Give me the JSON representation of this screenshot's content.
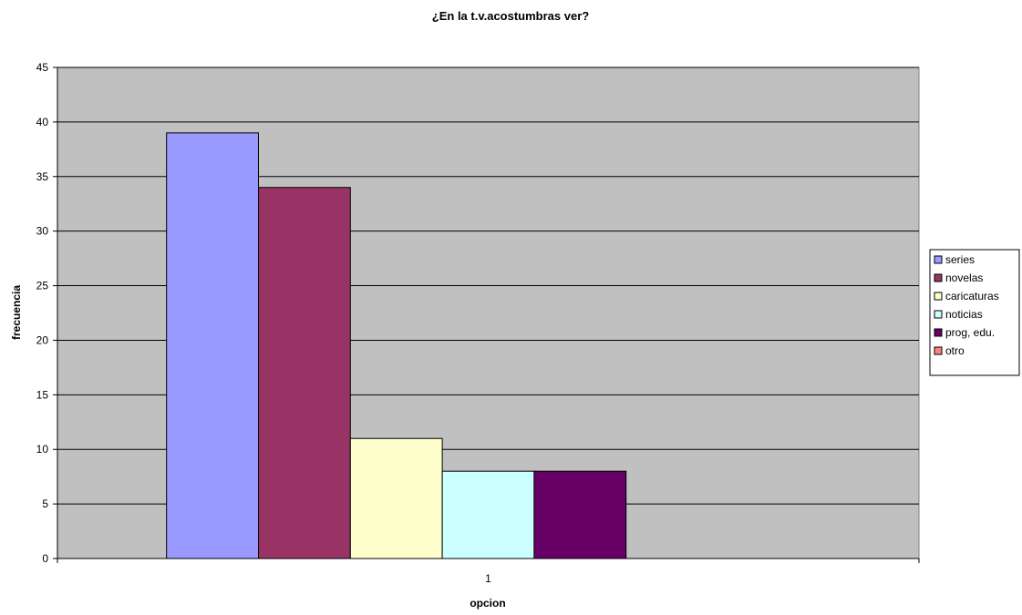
{
  "chart_data": {
    "type": "bar",
    "title": "¿En la t.v.acostumbras ver?",
    "xlabel": "opcion",
    "ylabel": "frecuencia",
    "categories": [
      "1"
    ],
    "ylim": [
      0,
      45
    ],
    "yticks": [
      0,
      5,
      10,
      15,
      20,
      25,
      30,
      35,
      40,
      45
    ],
    "grid": true,
    "legend_position": "right",
    "plot_background": "#c0c0c0",
    "series": [
      {
        "name": "series",
        "values": [
          39
        ],
        "color": "#9999ff"
      },
      {
        "name": "novelas",
        "values": [
          34
        ],
        "color": "#993366"
      },
      {
        "name": "caricaturas",
        "values": [
          11
        ],
        "color": "#ffffcc"
      },
      {
        "name": "noticias",
        "values": [
          8
        ],
        "color": "#ccffff"
      },
      {
        "name": "prog, edu.",
        "values": [
          8
        ],
        "color": "#660066"
      },
      {
        "name": "otro",
        "values": [
          0
        ],
        "color": "#ff8080"
      }
    ]
  }
}
